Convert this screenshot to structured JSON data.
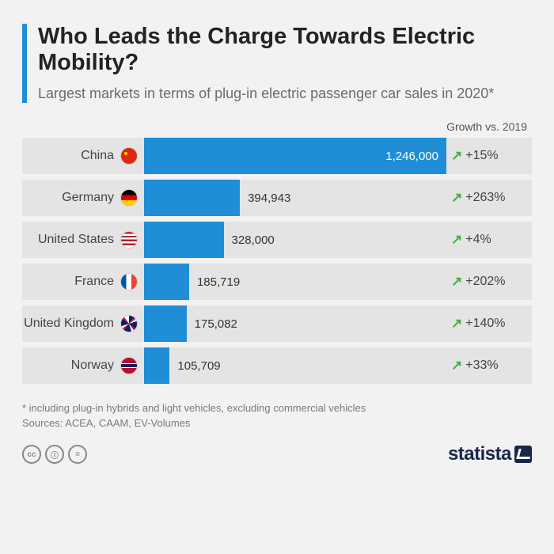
{
  "title": "Who Leads the Charge Towards Electric Mobility?",
  "subtitle": "Largest markets in terms of plug-in electric passenger car sales in 2020*",
  "growth_header": "Growth vs. 2019",
  "footnote": "* including plug-in hybrids and light vehicles, excluding commercial vehicles",
  "sources": "Sources: ACEA, CAAM, EV-Volumes",
  "logo_text": "statista",
  "chart": {
    "type": "bar-horizontal",
    "bar_color": "#1f8ed6",
    "row_bg": "#e4e4e4",
    "max_value": 1246000,
    "arrow_color": "#3fae49",
    "background_color": "#f2f2f2",
    "accent_color": "#1f8ed6",
    "title_color": "#232323",
    "subtitle_color": "#6b6b6b",
    "label_fontsize": 16,
    "value_fontsize": 15
  },
  "rows": [
    {
      "country": "China",
      "value": 1246000,
      "value_label": "1,246,000",
      "growth": "+15%",
      "flag_bg": "radial-gradient(circle at 30% 35%, #ffde00 0, #ffde00 2px, transparent 2px), #de2910",
      "value_inside": true
    },
    {
      "country": "Germany",
      "value": 394943,
      "value_label": "394,943",
      "growth": "+263%",
      "flag_bg": "linear-gradient(#000 0 33%, #dd0000 33% 66%, #ffce00 66%)",
      "value_inside": false
    },
    {
      "country": "United States",
      "value": 328000,
      "value_label": "328,000",
      "growth": "+4%",
      "flag_bg": "linear-gradient(#b22234 0 12%,#fff 12% 24%,#b22234 24% 36%,#fff 36% 48%,#b22234 48% 60%,#fff 60% 72%,#b22234 72% 84%,#fff 84%), radial-gradient(circle at 30% 30%, #3c3b6e 0 40%, transparent 40%)",
      "value_inside": false
    },
    {
      "country": "France",
      "value": 185719,
      "value_label": "185,719",
      "growth": "+202%",
      "flag_bg": "linear-gradient(90deg,#0055a4 0 33%,#fff 33% 66%,#ef4135 66%)",
      "value_inside": false
    },
    {
      "country": "United Kingdom",
      "value": 175082,
      "value_label": "175,082",
      "growth": "+140%",
      "flag_bg": "conic-gradient(#012169 0 10%, #c8102e 10% 15%, #fff 15% 20%, #012169 20% 35%, #c8102e 35% 40%, #fff 40% 45%, #012169 45% 60%, #c8102e 60% 65%, #fff 65% 70%, #012169 70% 85%, #c8102e 85% 90%, #fff 90%)",
      "value_inside": false
    },
    {
      "country": "Norway",
      "value": 105709,
      "value_label": "105,709",
      "growth": "+33%",
      "flag_bg": "linear-gradient(#ba0c2f 0 35%, #fff 35% 40%, #00205b 40% 60%, #fff 60% 65%, #ba0c2f 65%), linear-gradient(90deg, transparent 0 30%, #fff 30% 35%, #00205b 35% 50%, #fff 50% 55%, transparent 55%)",
      "value_inside": false
    }
  ],
  "cc": {
    "a": "cc",
    "b": "ⓘ",
    "c": "="
  }
}
